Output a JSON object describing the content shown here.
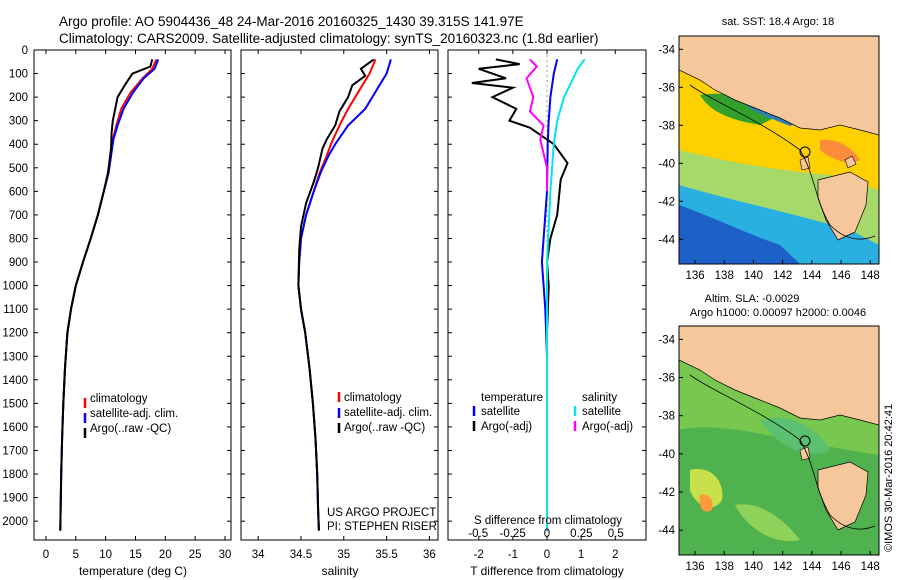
{
  "header": {
    "line1": "Argo profile: AO 5904436_48 24-Mar-2016 20160325_1430 39.315S 141.97E",
    "line2": "Climatology: CARS2009. Satellite-adjusted climatology: synTS_20160323.nc (1.8d earlier)"
  },
  "colors": {
    "climatology": "#ff0000",
    "satellite": "#0000ff",
    "argo": "#000000",
    "salinity_satellite": "#00e5ee",
    "salinity_argo": "#ff00ff",
    "land": "#f7c79c"
  },
  "legend_temp": [
    "climatology",
    "satellite-adj. clim.",
    "Argo(..raw -QC)"
  ],
  "legend_sal": [
    "climatology",
    "satellite-adj. clim.",
    "Argo(..raw -QC)"
  ],
  "legend_diff": {
    "temp_title": "temperature",
    "sal_title": "salinity",
    "items": [
      "satellite",
      "Argo(-adj)",
      "satellite",
      "Argo(-adj)"
    ]
  },
  "credit": {
    "line1": "US ARGO PROJECT",
    "line2": "PI: STEPHEN RISER"
  },
  "map_top": {
    "title": "sat. SST: 18.4  Argo: 18"
  },
  "map_bottom": {
    "title1": "Altim. SLA: -0.0029",
    "title2": "Argo h1000: 0.00097 h2000: 0.0046"
  },
  "map_axes": {
    "xticks": [
      "136",
      "138",
      "140",
      "142",
      "144",
      "146",
      "148"
    ],
    "yticks": [
      "-34",
      "-36",
      "-38",
      "-40",
      "-42",
      "-44"
    ]
  },
  "watermark": "©IMOS 30-Mar-2016 20:42:41",
  "chart_data": [
    {
      "type": "line",
      "title": "",
      "xlabel": "temperature (deg C)",
      "ylabel": "",
      "xlim": [
        -2,
        31
      ],
      "ylim": [
        2080,
        0
      ],
      "xticks": [
        "0",
        "5",
        "10",
        "15",
        "20",
        "25",
        "30"
      ],
      "yticks": [
        "0",
        "100",
        "200",
        "300",
        "400",
        "500",
        "600",
        "700",
        "800",
        "900",
        "1000",
        "1100",
        "1200",
        "1300",
        "1400",
        "1500",
        "1600",
        "1700",
        "1800",
        "1900",
        "2000"
      ],
      "series": [
        {
          "name": "climatology",
          "color": "#ff0000",
          "x": [
            18.5,
            17.8,
            16.2,
            14.2,
            12.6,
            11.8,
            11.2,
            10.9,
            10.5,
            9.7,
            8.7,
            7.5,
            6.2,
            5.0,
            4.2,
            3.6,
            3.2,
            2.9,
            2.7,
            2.55,
            2.45,
            2.4
          ],
          "y": [
            40,
            80,
            120,
            180,
            250,
            320,
            380,
            450,
            520,
            600,
            700,
            800,
            900,
            1000,
            1100,
            1200,
            1350,
            1500,
            1650,
            1800,
            1950,
            2040
          ]
        },
        {
          "name": "satellite-adj. clim.",
          "color": "#0000ff",
          "x": [
            18.8,
            18.2,
            16.4,
            14.6,
            13.0,
            12.0,
            11.3,
            10.9,
            10.5,
            9.7,
            8.7,
            7.5,
            6.2,
            5.0,
            4.2,
            3.6,
            3.2,
            2.9,
            2.7,
            2.55,
            2.45,
            2.4
          ],
          "y": [
            40,
            80,
            120,
            180,
            250,
            320,
            380,
            450,
            520,
            600,
            700,
            800,
            900,
            1000,
            1100,
            1200,
            1350,
            1500,
            1650,
            1800,
            1950,
            2040
          ]
        },
        {
          "name": "Argo(..raw -QC)",
          "color": "#000000",
          "x": [
            17.8,
            17.5,
            14.5,
            13.2,
            12.0,
            11.6,
            11.2,
            11.0,
            10.9,
            10.4,
            9.7,
            8.7,
            7.5,
            6.2,
            5.0,
            4.2,
            3.6,
            3.2,
            2.9,
            2.7,
            2.55,
            2.45,
            2.4
          ],
          "y": [
            40,
            70,
            100,
            150,
            200,
            250,
            300,
            350,
            420,
            520,
            600,
            700,
            800,
            900,
            1000,
            1100,
            1200,
            1350,
            1500,
            1650,
            1800,
            1950,
            2040
          ]
        }
      ]
    },
    {
      "type": "line",
      "title": "",
      "xlabel": "salinity",
      "ylabel": "",
      "xlim": [
        33.8,
        36.1
      ],
      "ylim": [
        2080,
        0
      ],
      "xticks": [
        "34",
        "34.5",
        "35",
        "35.5",
        "36"
      ],
      "series": [
        {
          "name": "climatology",
          "color": "#ff0000",
          "x": [
            35.37,
            35.3,
            35.2,
            35.05,
            34.95,
            34.85,
            34.8,
            34.72,
            34.65,
            34.56,
            34.5,
            34.48,
            34.47,
            34.5,
            34.55,
            34.6,
            34.64,
            34.67,
            34.69,
            34.7,
            34.71
          ],
          "y": [
            40,
            100,
            160,
            250,
            320,
            400,
            450,
            520,
            600,
            700,
            800,
            900,
            1000,
            1100,
            1200,
            1350,
            1500,
            1650,
            1800,
            1950,
            2040
          ]
        },
        {
          "name": "satellite-adj. clim.",
          "color": "#0000ff",
          "x": [
            35.55,
            35.5,
            35.4,
            35.25,
            35.05,
            34.9,
            34.82,
            34.73,
            34.65,
            34.56,
            34.5,
            34.48,
            34.47,
            34.5,
            34.55,
            34.6,
            34.64,
            34.67,
            34.69,
            34.7,
            34.71
          ],
          "y": [
            40,
            100,
            160,
            250,
            320,
            400,
            450,
            520,
            600,
            700,
            800,
            900,
            1000,
            1100,
            1200,
            1350,
            1500,
            1650,
            1800,
            1950,
            2040
          ]
        },
        {
          "name": "Argo(..raw -QC)",
          "color": "#000000",
          "x": [
            35.35,
            35.2,
            35.25,
            35.1,
            35.05,
            34.95,
            34.9,
            34.8,
            34.75,
            34.7,
            34.65,
            34.56,
            34.5,
            34.48,
            34.47,
            34.5,
            34.55,
            34.6,
            34.64,
            34.67,
            34.69,
            34.7,
            34.71
          ],
          "y": [
            40,
            80,
            110,
            150,
            200,
            260,
            320,
            380,
            420,
            500,
            560,
            650,
            750,
            850,
            1000,
            1100,
            1200,
            1350,
            1500,
            1650,
            1800,
            1950,
            2040
          ]
        }
      ]
    },
    {
      "type": "line",
      "title": "",
      "xlabel": "T difference from climatology",
      "xlabel2": "S difference from climatology",
      "ylabel": "",
      "xlim": [
        -2.9,
        2.9
      ],
      "ylim": [
        2080,
        0
      ],
      "xticks": [
        "-2",
        "-1",
        "0",
        "1",
        "2"
      ],
      "xticks2": [
        "-0.5",
        "-0.25",
        "0",
        "0.25",
        "0.5"
      ],
      "series": [
        {
          "name": "temperature satellite",
          "color": "#0000ff",
          "x": [
            0.3,
            0.2,
            0.1,
            0.05,
            0.02,
            0.0,
            -0.1,
            -0.15,
            -0.1,
            -0.05,
            0.0,
            0.0,
            0.0
          ],
          "y": [
            40,
            100,
            200,
            300,
            400,
            600,
            800,
            900,
            1000,
            1100,
            1300,
            1600,
            2040
          ]
        },
        {
          "name": "temperature Argo(-adj)",
          "color": "#000000",
          "x": [
            -1.5,
            -0.8,
            -2.0,
            -1.2,
            -2.2,
            -1.0,
            -1.6,
            -0.9,
            -1.1,
            -0.5,
            0.2,
            0.6,
            0.4,
            0.3,
            0.1,
            0.0,
            0.05,
            0.0,
            0.0
          ],
          "y": [
            40,
            60,
            80,
            120,
            140,
            160,
            200,
            250,
            300,
            330,
            400,
            480,
            550,
            700,
            800,
            900,
            1000,
            1200,
            2040
          ]
        },
        {
          "name": "salinity satellite",
          "color": "#00e5ee",
          "x": [
            1.1,
            0.9,
            0.7,
            0.5,
            0.3,
            0.2,
            0.1,
            0.0,
            0.0,
            0.0
          ],
          "y": [
            40,
            80,
            140,
            200,
            300,
            400,
            600,
            900,
            1300,
            2040
          ]
        },
        {
          "name": "salinity Argo(-adj)",
          "color": "#ff00ff",
          "x": [
            -0.5,
            -0.3,
            -0.6,
            -0.4,
            -0.5,
            -0.1,
            -0.2,
            0.0,
            0.0
          ],
          "y": [
            40,
            70,
            120,
            200,
            260,
            320,
            380,
            500,
            600
          ]
        }
      ]
    }
  ]
}
